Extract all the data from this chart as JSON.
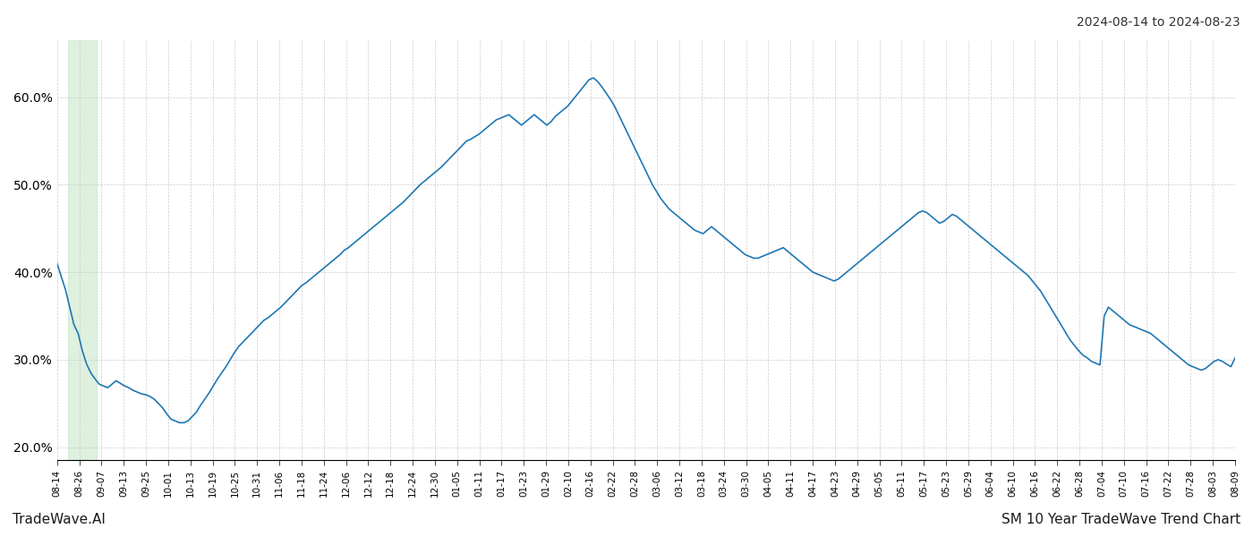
{
  "title_top_right": "2024-08-14 to 2024-08-23",
  "title_bottom_right": "SM 10 Year TradeWave Trend Chart",
  "title_bottom_left": "TradeWave.AI",
  "line_color": "#1f77b4",
  "highlight_color": "#c8e6c9",
  "highlight_alpha": 0.6,
  "background_color": "#ffffff",
  "grid_color": "#cccccc",
  "ylim": [
    0.185,
    0.665
  ],
  "yticks": [
    0.2,
    0.3,
    0.4,
    0.5,
    0.6
  ],
  "x_labels": [
    "08-14",
    "08-26",
    "09-07",
    "09-13",
    "09-25",
    "10-01",
    "10-13",
    "10-19",
    "10-25",
    "10-31",
    "11-06",
    "11-18",
    "11-24",
    "12-06",
    "12-12",
    "12-18",
    "12-24",
    "12-30",
    "01-05",
    "01-11",
    "01-17",
    "01-23",
    "01-29",
    "02-10",
    "02-16",
    "02-22",
    "02-28",
    "03-06",
    "03-12",
    "03-18",
    "03-24",
    "03-30",
    "04-05",
    "04-11",
    "04-17",
    "04-23",
    "04-29",
    "05-05",
    "05-11",
    "05-17",
    "05-23",
    "05-29",
    "06-04",
    "06-10",
    "06-16",
    "06-22",
    "06-28",
    "07-04",
    "07-10",
    "07-16",
    "07-22",
    "07-28",
    "08-03",
    "08-09"
  ],
  "values": [
    0.41,
    0.395,
    0.38,
    0.36,
    0.34,
    0.33,
    0.31,
    0.295,
    0.285,
    0.278,
    0.272,
    0.27,
    0.268,
    0.272,
    0.276,
    0.273,
    0.27,
    0.268,
    0.265,
    0.263,
    0.261,
    0.26,
    0.258,
    0.255,
    0.25,
    0.245,
    0.238,
    0.232,
    0.23,
    0.228,
    0.228,
    0.23,
    0.235,
    0.24,
    0.248,
    0.255,
    0.262,
    0.27,
    0.278,
    0.285,
    0.292,
    0.3,
    0.308,
    0.315,
    0.32,
    0.325,
    0.33,
    0.335,
    0.34,
    0.345,
    0.348,
    0.352,
    0.356,
    0.36,
    0.365,
    0.37,
    0.375,
    0.38,
    0.385,
    0.388,
    0.392,
    0.396,
    0.4,
    0.404,
    0.408,
    0.412,
    0.416,
    0.42,
    0.425,
    0.428,
    0.432,
    0.436,
    0.44,
    0.444,
    0.448,
    0.452,
    0.456,
    0.46,
    0.464,
    0.468,
    0.472,
    0.476,
    0.48,
    0.485,
    0.49,
    0.495,
    0.5,
    0.504,
    0.508,
    0.512,
    0.516,
    0.52,
    0.525,
    0.53,
    0.535,
    0.54,
    0.545,
    0.55,
    0.552,
    0.555,
    0.558,
    0.562,
    0.566,
    0.57,
    0.574,
    0.576,
    0.578,
    0.58,
    0.576,
    0.572,
    0.568,
    0.572,
    0.576,
    0.58,
    0.576,
    0.572,
    0.568,
    0.572,
    0.578,
    0.582,
    0.586,
    0.59,
    0.596,
    0.602,
    0.608,
    0.614,
    0.62,
    0.622,
    0.618,
    0.612,
    0.605,
    0.598,
    0.59,
    0.58,
    0.57,
    0.56,
    0.55,
    0.54,
    0.53,
    0.52,
    0.51,
    0.5,
    0.492,
    0.484,
    0.478,
    0.472,
    0.468,
    0.464,
    0.46,
    0.456,
    0.452,
    0.448,
    0.446,
    0.444,
    0.448,
    0.452,
    0.448,
    0.444,
    0.44,
    0.436,
    0.432,
    0.428,
    0.424,
    0.42,
    0.418,
    0.416,
    0.416,
    0.418,
    0.42,
    0.422,
    0.424,
    0.426,
    0.428,
    0.424,
    0.42,
    0.416,
    0.412,
    0.408,
    0.404,
    0.4,
    0.398,
    0.396,
    0.394,
    0.392,
    0.39,
    0.392,
    0.396,
    0.4,
    0.404,
    0.408,
    0.412,
    0.416,
    0.42,
    0.424,
    0.428,
    0.432,
    0.436,
    0.44,
    0.444,
    0.448,
    0.452,
    0.456,
    0.46,
    0.464,
    0.468,
    0.47,
    0.468,
    0.464,
    0.46,
    0.456,
    0.458,
    0.462,
    0.466,
    0.464,
    0.46,
    0.456,
    0.452,
    0.448,
    0.444,
    0.44,
    0.436,
    0.432,
    0.428,
    0.424,
    0.42,
    0.416,
    0.412,
    0.408,
    0.404,
    0.4,
    0.396,
    0.39,
    0.384,
    0.378,
    0.37,
    0.362,
    0.354,
    0.346,
    0.338,
    0.33,
    0.322,
    0.316,
    0.31,
    0.305,
    0.302,
    0.298,
    0.296,
    0.294,
    0.35,
    0.36,
    0.356,
    0.352,
    0.348,
    0.344,
    0.34,
    0.338,
    0.336,
    0.334,
    0.332,
    0.33,
    0.326,
    0.322,
    0.318,
    0.314,
    0.31,
    0.306,
    0.302,
    0.298,
    0.294,
    0.292,
    0.29,
    0.288,
    0.29,
    0.294,
    0.298,
    0.3,
    0.298,
    0.295,
    0.292,
    0.302
  ]
}
